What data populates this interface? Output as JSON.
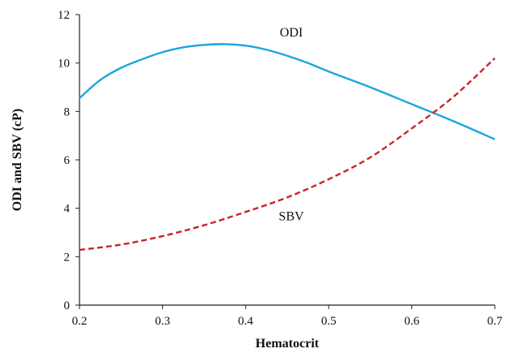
{
  "chart_data": {
    "type": "line",
    "xlabel": "Hematocrit",
    "ylabel": "ODI and SBV (cP)",
    "xlim": [
      0.2,
      0.7
    ],
    "ylim": [
      0,
      12
    ],
    "xticks": [
      "0.2",
      "0.3",
      "0.4",
      "0.5",
      "0.6",
      "0.7"
    ],
    "yticks": [
      "0",
      "2",
      "4",
      "6",
      "8",
      "10",
      "12"
    ],
    "grid": false,
    "series": [
      {
        "name": "ODI",
        "color": "#1aa6e0",
        "style": "solid",
        "label_at": [
          0.455,
          11.1
        ],
        "x": [
          0.2,
          0.225,
          0.25,
          0.275,
          0.3,
          0.325,
          0.35,
          0.375,
          0.4,
          0.425,
          0.45,
          0.475,
          0.5,
          0.55,
          0.6,
          0.65,
          0.7
        ],
        "values": [
          8.55,
          9.3,
          9.8,
          10.15,
          10.45,
          10.65,
          10.75,
          10.78,
          10.72,
          10.55,
          10.3,
          10.0,
          9.65,
          9.0,
          8.3,
          7.6,
          6.85
        ]
      },
      {
        "name": "SBV",
        "color": "#c8242c",
        "style": "dashed",
        "label_at": [
          0.455,
          3.5
        ],
        "x": [
          0.2,
          0.25,
          0.3,
          0.35,
          0.4,
          0.45,
          0.5,
          0.55,
          0.6,
          0.65,
          0.7
        ],
        "values": [
          2.28,
          2.5,
          2.85,
          3.3,
          3.85,
          4.45,
          5.2,
          6.1,
          7.3,
          8.6,
          10.2
        ]
      }
    ]
  }
}
